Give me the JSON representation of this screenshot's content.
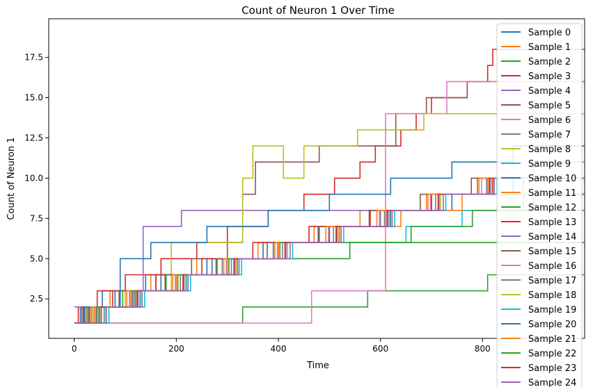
{
  "chart_data": {
    "type": "line",
    "step": true,
    "title": "Count of Neuron 1 Over Time",
    "xlabel": "Time",
    "ylabel": "Count of Neuron 1",
    "xlim": [
      -50,
      1000
    ],
    "ylim": [
      0.05,
      19.9
    ],
    "xticks": [
      0,
      200,
      400,
      600,
      800
    ],
    "xtick_labels": [
      "0",
      "200",
      "400",
      "600",
      "800"
    ],
    "yticks": [
      2.5,
      5.0,
      7.5,
      10.0,
      12.5,
      15.0,
      17.5
    ],
    "ytick_labels": [
      "2.5",
      "5.0",
      "7.5",
      "10.0",
      "12.5",
      "15.0",
      "17.5"
    ],
    "grid": false,
    "legend_position": "top-right",
    "colors": [
      "#1f77b4",
      "#ff7f0e",
      "#2ca02c",
      "#d62728",
      "#9467bd",
      "#8c564b",
      "#e377c2",
      "#7f7f7f",
      "#bcbd22",
      "#17becf"
    ],
    "series": [
      {
        "name": "Sample 0",
        "color": "#1f77b4",
        "x": [
          0,
          12,
          55,
          140,
          260,
          370,
          480,
          600,
          700,
          830,
          1000
        ],
        "y": [
          1,
          2,
          3,
          4,
          5,
          6,
          7,
          8,
          9,
          10,
          10
        ]
      },
      {
        "name": "Sample 1",
        "color": "#ff7f0e",
        "x": [
          0,
          22,
          70,
          150,
          240,
          360,
          470,
          560,
          690,
          810,
          900,
          1000
        ],
        "y": [
          1,
          2,
          3,
          4,
          5,
          6,
          7,
          8,
          9,
          10,
          11,
          11
        ]
      },
      {
        "name": "Sample 2",
        "color": "#2ca02c",
        "x": [
          0,
          330,
          575,
          810,
          1000
        ],
        "y": [
          1,
          2,
          3,
          4,
          4
        ]
      },
      {
        "name": "Sample 3",
        "color": "#d62728",
        "x": [
          0,
          8,
          45,
          100,
          170,
          240,
          300,
          380,
          450,
          510,
          560,
          590,
          640,
          670,
          700,
          770,
          810,
          820,
          1000
        ],
        "y": [
          1,
          2,
          3,
          4,
          5,
          6,
          7,
          8,
          9,
          10,
          11,
          12,
          13,
          14,
          15,
          16,
          17,
          18,
          18
        ]
      },
      {
        "name": "Sample 4",
        "color": "#9467bd",
        "x": [
          0,
          115,
          135,
          210,
          1000
        ],
        "y": [
          2,
          3,
          7,
          8,
          8
        ]
      },
      {
        "name": "Sample 5",
        "color": "#8c564b",
        "x": [
          0,
          30,
          90,
          160,
          230,
          300,
          330,
          355,
          480,
          560,
          630,
          690,
          770,
          1000
        ],
        "y": [
          1,
          2,
          3,
          4,
          5,
          6,
          9,
          11,
          12,
          12,
          14,
          15,
          16,
          16
        ]
      },
      {
        "name": "Sample 6",
        "color": "#e377c2",
        "x": [
          0,
          295,
          465,
          610,
          730,
          1000
        ],
        "y": [
          1,
          1,
          3,
          14,
          16,
          16
        ]
      },
      {
        "name": "Sample 7",
        "color": "#7f7f7f",
        "x": [
          0,
          50,
          120,
          200,
          290,
          400,
          500,
          600,
          700,
          790,
          1000
        ],
        "y": [
          1,
          2,
          3,
          4,
          5,
          6,
          7,
          8,
          9,
          10,
          10
        ]
      },
      {
        "name": "Sample 8",
        "color": "#bcbd22",
        "x": [
          0,
          35,
          100,
          190,
          330,
          350,
          410,
          450,
          555,
          685,
          1000
        ],
        "y": [
          1,
          2,
          3,
          6,
          10,
          12,
          10,
          12,
          13,
          14,
          14
        ]
      },
      {
        "name": "Sample 9",
        "color": "#17becf",
        "x": [
          0,
          60,
          130,
          220,
          320,
          430,
          540,
          650,
          760,
          880,
          1000
        ],
        "y": [
          1,
          2,
          3,
          4,
          5,
          5,
          6,
          7,
          8,
          9,
          9
        ]
      },
      {
        "name": "Sample 10",
        "color": "#1f77b4",
        "x": [
          0,
          18,
          80,
          170,
          270,
          390,
          500,
          620,
          740,
          860,
          1000
        ],
        "y": [
          1,
          2,
          3,
          4,
          5,
          6,
          7,
          8,
          9,
          10,
          10
        ]
      },
      {
        "name": "Sample 11",
        "color": "#ff7f0e",
        "x": [
          0,
          40,
          110,
          200,
          300,
          400,
          520,
          640,
          760,
          880,
          1000
        ],
        "y": [
          1,
          2,
          3,
          4,
          5,
          6,
          7,
          8,
          9,
          10,
          10
        ]
      },
      {
        "name": "Sample 12",
        "color": "#2ca02c",
        "x": [
          0,
          25,
          95,
          180,
          280,
          420,
          540,
          660,
          780,
          900,
          1000
        ],
        "y": [
          1,
          2,
          3,
          4,
          5,
          5,
          6,
          7,
          8,
          9,
          9
        ]
      },
      {
        "name": "Sample 13",
        "color": "#d62728",
        "x": [
          0,
          15,
          75,
          160,
          250,
          350,
          460,
          580,
          700,
          820,
          1000
        ],
        "y": [
          1,
          2,
          3,
          4,
          5,
          6,
          7,
          8,
          9,
          10,
          10
        ]
      },
      {
        "name": "Sample 14",
        "color": "#9467bd",
        "x": [
          0,
          45,
          125,
          215,
          315,
          415,
          515,
          615,
          715,
          815,
          1000
        ],
        "y": [
          1,
          2,
          3,
          4,
          5,
          6,
          7,
          8,
          9,
          10,
          10
        ]
      },
      {
        "name": "Sample 15",
        "color": "#8c564b",
        "x": [
          0,
          28,
          88,
          178,
          278,
          378,
          478,
          578,
          678,
          778,
          1000
        ],
        "y": [
          1,
          2,
          3,
          4,
          5,
          6,
          7,
          8,
          9,
          10,
          10
        ]
      },
      {
        "name": "Sample 16",
        "color": "#e377c2",
        "x": [
          0,
          38,
          108,
          198,
          298,
          398,
          498,
          598,
          698,
          798,
          1000
        ],
        "y": [
          1,
          2,
          3,
          4,
          5,
          6,
          7,
          8,
          9,
          10,
          10
        ]
      },
      {
        "name": "Sample 17",
        "color": "#7f7f7f",
        "x": [
          0,
          48,
          118,
          208,
          308,
          408,
          508,
          608,
          708,
          808,
          1000
        ],
        "y": [
          1,
          2,
          3,
          4,
          5,
          6,
          7,
          8,
          9,
          10,
          10
        ]
      },
      {
        "name": "Sample 18",
        "color": "#bcbd22",
        "x": [
          0,
          58,
          128,
          218,
          318,
          418,
          518,
          618,
          718,
          818,
          1000
        ],
        "y": [
          1,
          2,
          3,
          4,
          5,
          6,
          7,
          8,
          9,
          10,
          10
        ]
      },
      {
        "name": "Sample 19",
        "color": "#17becf",
        "x": [
          0,
          68,
          138,
          228,
          328,
          428,
          528,
          628,
          728,
          828,
          1000
        ],
        "y": [
          1,
          2,
          3,
          4,
          5,
          6,
          7,
          8,
          9,
          10,
          10
        ]
      },
      {
        "name": "Sample 20",
        "color": "#1f77b4",
        "x": [
          0,
          20,
          90,
          150,
          260,
          380,
          500,
          620,
          740,
          860,
          1000
        ],
        "y": [
          1,
          2,
          5,
          6,
          7,
          8,
          9,
          10,
          11,
          12,
          12
        ]
      },
      {
        "name": "Sample 21",
        "color": "#ff7f0e",
        "x": [
          0,
          33,
          103,
          193,
          293,
          393,
          493,
          593,
          693,
          793,
          1000
        ],
        "y": [
          1,
          2,
          3,
          4,
          5,
          6,
          7,
          8,
          9,
          10,
          10
        ]
      },
      {
        "name": "Sample 22",
        "color": "#2ca02c",
        "x": [
          0,
          43,
          113,
          203,
          303,
          403,
          503,
          603,
          703,
          803,
          1000
        ],
        "y": [
          1,
          2,
          3,
          4,
          5,
          6,
          6,
          6,
          6,
          6,
          6
        ]
      },
      {
        "name": "Sample 23",
        "color": "#d62728",
        "x": [
          0,
          53,
          123,
          213,
          313,
          413,
          513,
          613,
          713,
          813,
          1000
        ],
        "y": [
          1,
          2,
          3,
          4,
          5,
          6,
          7,
          8,
          9,
          10,
          10
        ]
      },
      {
        "name": "Sample 24",
        "color": "#9467bd",
        "x": [
          0,
          63,
          133,
          223,
          323,
          423,
          523,
          623,
          723,
          823,
          1000
        ],
        "y": [
          1,
          2,
          3,
          4,
          5,
          6,
          7,
          8,
          9,
          10,
          10
        ]
      }
    ]
  }
}
